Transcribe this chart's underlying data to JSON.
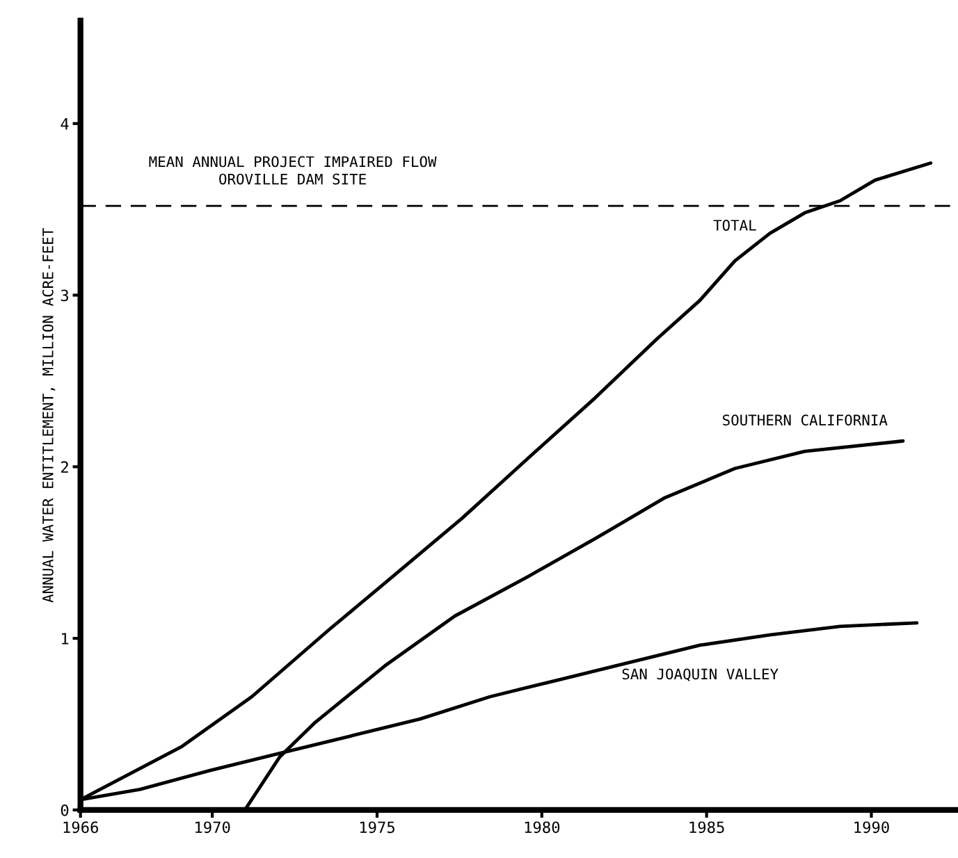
{
  "chart_data": {
    "type": "line",
    "ylabel": "ANNUAL WATER ENTITLEMENT, MILLION ACRE-FEET",
    "xlim": [
      1966,
      1992.6
    ],
    "xticks": [
      1966,
      1970,
      1975,
      1980,
      1985,
      1990
    ],
    "ylim": [
      0,
      4.6
    ],
    "yticks": [
      0,
      1,
      2,
      3,
      4
    ],
    "grid": false,
    "legend": false,
    "marker": "none",
    "line_style": "solid",
    "ref_lines": [
      {
        "axis": "y",
        "value": 3.52,
        "label": "MEAN ANNUAL PROJECT IMPAIRED FLOW\nOROVILLE DAM SITE",
        "line_style": "dashed",
        "color": "#000000"
      }
    ],
    "series": [
      {
        "name": "TOTAL",
        "color": "#000000",
        "x": [
          1966.0,
          1969.08,
          1971.2,
          1973.54,
          1975.35,
          1977.58,
          1979.7,
          1981.61,
          1983.52,
          1984.8,
          1985.86,
          1986.92,
          1987.98,
          1989.05,
          1990.11,
          1991.8
        ],
        "values": [
          0.06,
          0.37,
          0.66,
          1.05,
          1.34,
          1.7,
          2.07,
          2.4,
          2.75,
          2.97,
          3.2,
          3.36,
          3.48,
          3.55,
          3.67,
          3.77
        ]
      },
      {
        "name": "SOUTHERN CALIFORNIA",
        "color": "#000000",
        "x": [
          1970.99,
          1972.05,
          1973.12,
          1975.24,
          1977.36,
          1979.49,
          1981.61,
          1983.74,
          1985.86,
          1987.98,
          1990.96
        ],
        "values": [
          0,
          0.31,
          0.51,
          0.84,
          1.13,
          1.35,
          1.58,
          1.82,
          1.99,
          2.09,
          2.15
        ]
      },
      {
        "name": "SAN JOAQUIN VALLEY",
        "color": "#000000",
        "x": [
          1966.0,
          1967.8,
          1969.93,
          1972.05,
          1974.18,
          1976.3,
          1978.43,
          1980.55,
          1982.67,
          1984.8,
          1986.92,
          1989.05,
          1991.38
        ],
        "values": [
          0.06,
          0.12,
          0.23,
          0.33,
          0.43,
          0.53,
          0.66,
          0.76,
          0.86,
          0.96,
          1.02,
          1.07,
          1.09
        ]
      }
    ]
  }
}
